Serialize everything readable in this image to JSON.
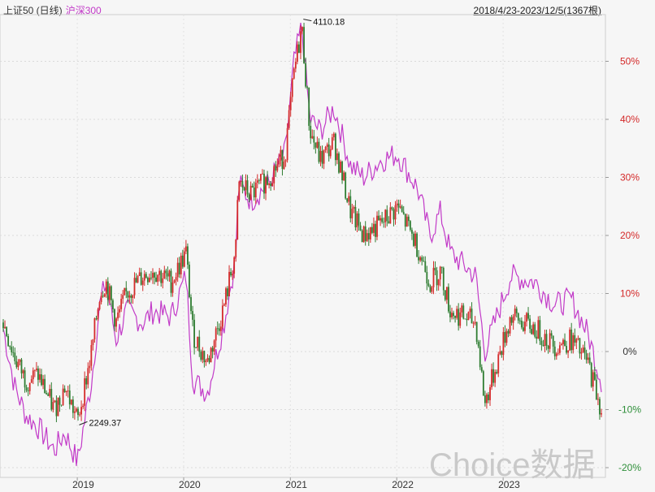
{
  "legend": {
    "series1": "上证50 (日线)",
    "series2": "沪深300"
  },
  "date_range": "2018/4/23-2023/12/5(1367根)",
  "watermark": "Choice数据",
  "colors": {
    "up": "#d42a2a",
    "down": "#2f7d32",
    "index2": "#c23ac8",
    "axis_pos": "#d42a2a",
    "axis_neg": "#2f8f3a",
    "axis_zero": "#333333"
  },
  "chart_data": {
    "type": "line",
    "title": "",
    "xlabel": "",
    "ylabel": "",
    "x_ticks": [
      "2019",
      "2020",
      "2021",
      "2022",
      "2023"
    ],
    "y_ticks": [
      "50%",
      "40%",
      "30%",
      "20%",
      "10%",
      "0%",
      "-10%",
      "-20%"
    ],
    "ylim": [
      -0.21,
      0.58
    ],
    "grid": true,
    "annotations": [
      {
        "label": "4110.18",
        "date": "2021-02-10",
        "value": 0.574
      },
      {
        "label": "2249.37",
        "date": "2019-01-03",
        "value": -0.125
      }
    ],
    "series": [
      {
        "name": "上证50 (日线)",
        "style": "candles",
        "dates": [
          "2018-04-23",
          "2018-06-01",
          "2018-07-10",
          "2018-08-20",
          "2018-10-15",
          "2018-11-20",
          "2019-01-03",
          "2019-02-20",
          "2019-03-20",
          "2019-04-10",
          "2019-05-15",
          "2019-06-20",
          "2019-08-15",
          "2019-09-20",
          "2019-11-20",
          "2020-01-10",
          "2020-02-03",
          "2020-03-23",
          "2020-05-20",
          "2020-07-01",
          "2020-07-07",
          "2020-08-20",
          "2020-10-20",
          "2020-12-15",
          "2021-01-15",
          "2021-02-10",
          "2021-03-10",
          "2021-04-15",
          "2021-06-01",
          "2021-07-28",
          "2021-09-10",
          "2021-11-10",
          "2022-01-05",
          "2022-03-15",
          "2022-04-26",
          "2022-06-01",
          "2022-07-05",
          "2022-09-30",
          "2022-10-31",
          "2023-01-28",
          "2023-04-20",
          "2023-06-30",
          "2023-08-25",
          "2023-10-20",
          "2023-12-05"
        ],
        "values": [
          0.05,
          -0.01,
          -0.05,
          -0.04,
          -0.1,
          -0.06,
          -0.12,
          0.0,
          0.1,
          0.12,
          0.05,
          0.1,
          0.13,
          0.14,
          0.12,
          0.17,
          0.03,
          -0.02,
          0.08,
          0.18,
          0.29,
          0.27,
          0.3,
          0.34,
          0.48,
          0.56,
          0.38,
          0.33,
          0.36,
          0.24,
          0.2,
          0.22,
          0.25,
          0.18,
          0.12,
          0.14,
          0.07,
          0.05,
          -0.09,
          0.06,
          0.04,
          0.01,
          0.02,
          -0.02,
          -0.1
        ]
      },
      {
        "name": "沪深300",
        "style": "line",
        "dates": [
          "2018-04-23",
          "2018-06-01",
          "2018-07-10",
          "2018-08-20",
          "2018-10-15",
          "2018-11-20",
          "2019-01-03",
          "2019-02-20",
          "2019-03-20",
          "2019-04-10",
          "2019-05-15",
          "2019-06-20",
          "2019-08-15",
          "2019-09-20",
          "2019-11-20",
          "2020-01-10",
          "2020-02-03",
          "2020-03-23",
          "2020-05-20",
          "2020-07-01",
          "2020-07-07",
          "2020-08-20",
          "2020-10-20",
          "2020-12-15",
          "2021-01-15",
          "2021-02-10",
          "2021-03-10",
          "2021-04-15",
          "2021-06-01",
          "2021-07-28",
          "2021-09-10",
          "2021-11-10",
          "2022-01-05",
          "2022-03-15",
          "2022-04-26",
          "2022-06-01",
          "2022-07-05",
          "2022-09-30",
          "2022-10-31",
          "2023-01-28",
          "2023-04-20",
          "2023-06-30",
          "2023-08-25",
          "2023-10-20",
          "2023-12-05"
        ],
        "values": [
          0.04,
          -0.06,
          -0.11,
          -0.13,
          -0.17,
          -0.14,
          -0.19,
          -0.05,
          0.08,
          0.12,
          0.02,
          0.07,
          0.05,
          0.07,
          0.06,
          0.13,
          -0.05,
          -0.07,
          0.05,
          0.17,
          0.29,
          0.26,
          0.29,
          0.34,
          0.5,
          0.56,
          0.4,
          0.38,
          0.42,
          0.32,
          0.3,
          0.33,
          0.34,
          0.28,
          0.2,
          0.24,
          0.17,
          0.13,
          0.0,
          0.13,
          0.12,
          0.08,
          0.09,
          0.03,
          -0.05
        ]
      }
    ]
  }
}
